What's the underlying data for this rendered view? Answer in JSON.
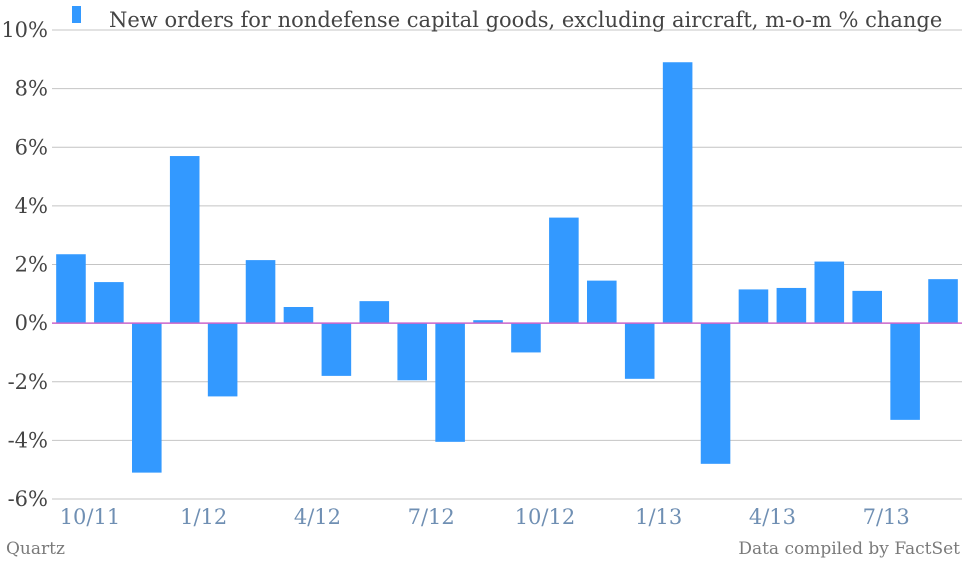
{
  "chart_data": {
    "type": "bar",
    "series": [
      {
        "name": "New orders for nondefense capital goods, excluding aircraft, m-o-m % change",
        "color": "#3399ff",
        "values": [
          2.35,
          1.4,
          -5.1,
          5.7,
          -2.5,
          2.15,
          0.55,
          -1.8,
          0.75,
          -1.95,
          -4.05,
          0.1,
          -1.0,
          3.6,
          1.45,
          -1.9,
          8.9,
          -4.8,
          1.15,
          1.2,
          2.1,
          1.1,
          -3.3,
          1.5
        ]
      }
    ],
    "x_tick_labels": [
      "10/11",
      "1/12",
      "4/12",
      "7/12",
      "10/12",
      "1/13",
      "4/13",
      "7/13"
    ],
    "y_ticks": [
      "10%",
      "8%",
      "6%",
      "4%",
      "2%",
      "0%",
      "-2%",
      "-4%",
      "-6%"
    ],
    "ylim": [
      -6,
      10
    ],
    "grid": true,
    "legend_position": "top",
    "zero_line_color": "#cc66cc"
  },
  "footer": {
    "source_left": "Quartz",
    "source_right": "Data compiled by FactSet"
  }
}
